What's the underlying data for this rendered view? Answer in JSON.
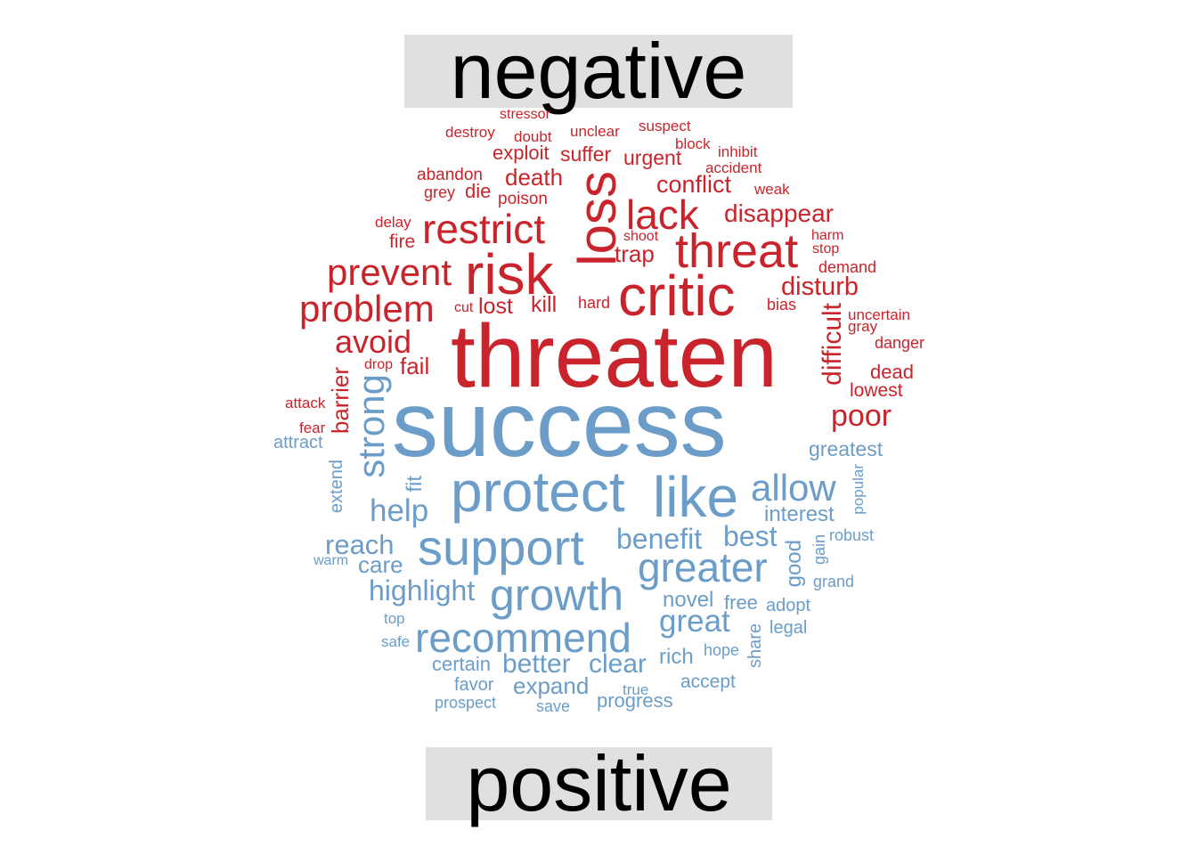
{
  "labels": {
    "negative": "negative",
    "positive": "positive"
  },
  "colors": {
    "negative": "#c9242b",
    "positive": "#6b9dc8",
    "label_background": "#e0e0e0"
  },
  "words": {
    "negative": [
      {
        "text": "threaten",
        "weight": 95
      },
      {
        "text": "loss",
        "weight": 60
      },
      {
        "text": "critic",
        "weight": 62
      },
      {
        "text": "risk",
        "weight": 62
      },
      {
        "text": "threat",
        "weight": 52
      },
      {
        "text": "restrict",
        "weight": 45
      },
      {
        "text": "lack",
        "weight": 44
      },
      {
        "text": "prevent",
        "weight": 40
      },
      {
        "text": "problem",
        "weight": 40
      },
      {
        "text": "avoid",
        "weight": 36
      },
      {
        "text": "difficult",
        "weight": 30
      },
      {
        "text": "poor",
        "weight": 32
      },
      {
        "text": "disturb",
        "weight": 28
      },
      {
        "text": "disappear",
        "weight": 27
      },
      {
        "text": "conflict",
        "weight": 26
      },
      {
        "text": "death",
        "weight": 25
      },
      {
        "text": "barrier",
        "weight": 25
      },
      {
        "text": "trap",
        "weight": 25
      },
      {
        "text": "fail",
        "weight": 25
      },
      {
        "text": "kill",
        "weight": 24
      },
      {
        "text": "lost",
        "weight": 24
      },
      {
        "text": "suffer",
        "weight": 22
      },
      {
        "text": "urgent",
        "weight": 22
      },
      {
        "text": "exploit",
        "weight": 21
      },
      {
        "text": "die",
        "weight": 21
      },
      {
        "text": "dead",
        "weight": 21
      },
      {
        "text": "lowest",
        "weight": 20
      },
      {
        "text": "fire",
        "weight": 20
      },
      {
        "text": "abandon",
        "weight": 18
      },
      {
        "text": "poison",
        "weight": 18
      },
      {
        "text": "grey",
        "weight": 17
      },
      {
        "text": "bias",
        "weight": 17
      },
      {
        "text": "hard",
        "weight": 17
      },
      {
        "text": "danger",
        "weight": 17
      },
      {
        "text": "demand",
        "weight": 17
      },
      {
        "text": "weak",
        "weight": 16
      },
      {
        "text": "accident",
        "weight": 16
      },
      {
        "text": "inhibit",
        "weight": 16
      },
      {
        "text": "block",
        "weight": 16
      },
      {
        "text": "suspect",
        "weight": 16
      },
      {
        "text": "unclear",
        "weight": 16
      },
      {
        "text": "doubt",
        "weight": 16
      },
      {
        "text": "destroy",
        "weight": 16
      },
      {
        "text": "stressor",
        "weight": 15
      },
      {
        "text": "delay",
        "weight": 16
      },
      {
        "text": "shoot",
        "weight": 15
      },
      {
        "text": "harm",
        "weight": 15
      },
      {
        "text": "stop",
        "weight": 15
      },
      {
        "text": "uncertain",
        "weight": 16
      },
      {
        "text": "gray",
        "weight": 16
      },
      {
        "text": "cut",
        "weight": 15
      },
      {
        "text": "drop",
        "weight": 15
      },
      {
        "text": "attack",
        "weight": 16
      },
      {
        "text": "fear",
        "weight": 16
      }
    ],
    "positive": [
      {
        "text": "success",
        "weight": 100
      },
      {
        "text": "protect",
        "weight": 60
      },
      {
        "text": "like",
        "weight": 60
      },
      {
        "text": "support",
        "weight": 52
      },
      {
        "text": "growth",
        "weight": 46
      },
      {
        "text": "recommend",
        "weight": 42
      },
      {
        "text": "greater",
        "weight": 42
      },
      {
        "text": "strong",
        "weight": 40
      },
      {
        "text": "allow",
        "weight": 38
      },
      {
        "text": "help",
        "weight": 33
      },
      {
        "text": "highlight",
        "weight": 30
      },
      {
        "text": "benefit",
        "weight": 30
      },
      {
        "text": "reach",
        "weight": 28
      },
      {
        "text": "best",
        "weight": 30
      },
      {
        "text": "great",
        "weight": 32
      },
      {
        "text": "better",
        "weight": 28
      },
      {
        "text": "clear",
        "weight": 28
      },
      {
        "text": "care",
        "weight": 24
      },
      {
        "text": "expand",
        "weight": 24
      },
      {
        "text": "interest",
        "weight": 22
      },
      {
        "text": "greatest",
        "weight": 21
      },
      {
        "text": "novel",
        "weight": 22
      },
      {
        "text": "fit",
        "weight": 22
      },
      {
        "text": "good",
        "weight": 22
      },
      {
        "text": "rich",
        "weight": 22
      },
      {
        "text": "certain",
        "weight": 20
      },
      {
        "text": "free",
        "weight": 20
      },
      {
        "text": "progress",
        "weight": 20
      },
      {
        "text": "accept",
        "weight": 19
      },
      {
        "text": "adopt",
        "weight": 18
      },
      {
        "text": "legal",
        "weight": 18
      },
      {
        "text": "share",
        "weight": 18
      },
      {
        "text": "extend",
        "weight": 18
      },
      {
        "text": "attract",
        "weight": 18
      },
      {
        "text": "favor",
        "weight": 18
      },
      {
        "text": "gain",
        "weight": 17
      },
      {
        "text": "robust",
        "weight": 17
      },
      {
        "text": "grand",
        "weight": 17
      },
      {
        "text": "popular",
        "weight": 16
      },
      {
        "text": "prospect",
        "weight": 17
      },
      {
        "text": "save",
        "weight": 17
      },
      {
        "text": "hope",
        "weight": 16
      },
      {
        "text": "true",
        "weight": 16
      },
      {
        "text": "top",
        "weight": 16
      },
      {
        "text": "safe",
        "weight": 16
      },
      {
        "text": "warm",
        "weight": 15
      }
    ]
  }
}
